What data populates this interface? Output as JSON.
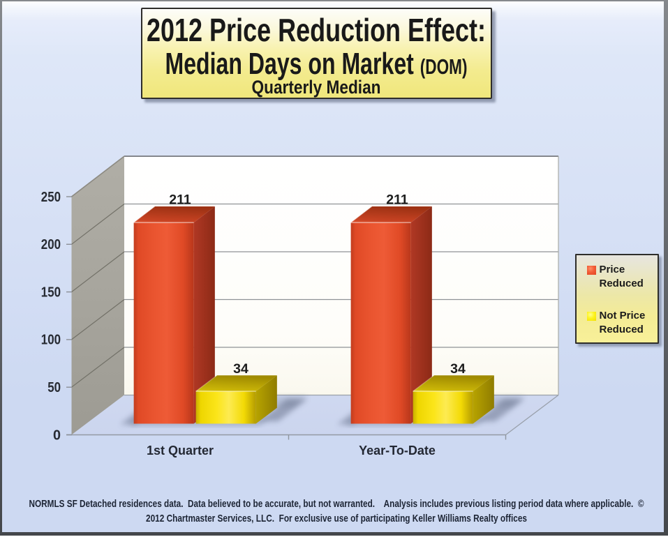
{
  "title_box": {
    "line1": "2012 Price Reduction Effect:",
    "line2_main": "Median Days on Market ",
    "line2_suffix": "(DOM)",
    "line3": "Quarterly Median"
  },
  "legend": {
    "items": [
      {
        "label": "Price Reduced",
        "color": "#e84a28"
      },
      {
        "label": "Not Price Reduced",
        "color": "#f7e400"
      }
    ]
  },
  "footer": {
    "line1": "NORMLS SF Detached residences data.  Data believed to be accurate, but not warranted.    Analysis includes previous listing period data where applicable.  ©",
    "line2": "2012 Chartmaster Services, LLC.  For exclusive use of participating Keller Williams Realty offices"
  },
  "chart_data": {
    "type": "bar",
    "subtype": "3d-column",
    "title": "2012 Price Reduction Effect: Median Days on Market (DOM), Quarterly Median",
    "categories": [
      "1st Quarter",
      "Year-To-Date"
    ],
    "series": [
      {
        "name": "Price Reduced",
        "values": [
          211,
          211
        ],
        "color": "#e65030"
      },
      {
        "name": "Not Price Reduced",
        "values": [
          34,
          34
        ],
        "color": "#f9e312"
      }
    ],
    "xlabel": "",
    "ylabel": "",
    "ylim": [
      0,
      250
    ],
    "ytick_interval": 50,
    "yticks": [
      0,
      50,
      100,
      150,
      200,
      250
    ],
    "grid": true,
    "legend_position": "right",
    "wall_color": "gray",
    "value_labels_shown": true
  }
}
